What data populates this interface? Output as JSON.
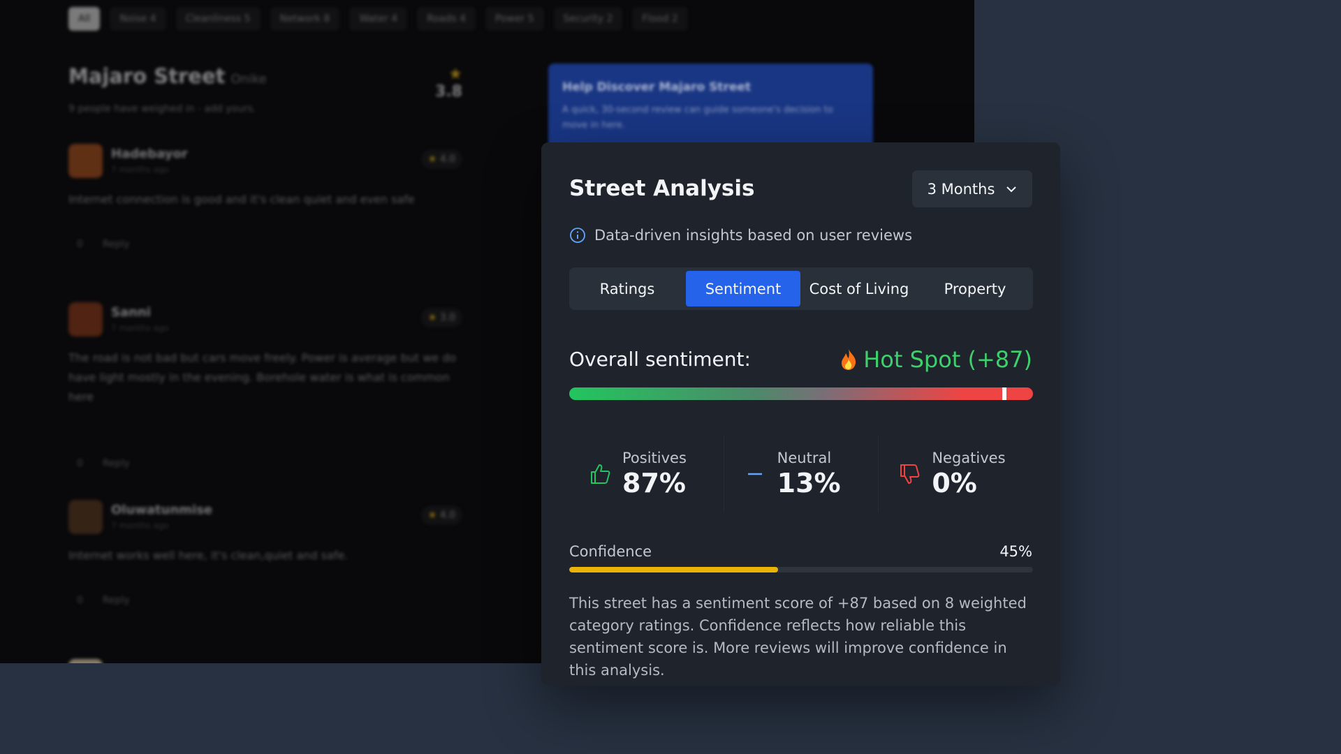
{
  "background": {
    "filters": [
      "All",
      "Noise 4",
      "Cleanliness 5",
      "Network 8",
      "Water 4",
      "Roads 4",
      "Power 5",
      "Security 2",
      "Flood 2"
    ],
    "street": {
      "name": "Majaro Street",
      "area": "Onike",
      "rating": "3.8",
      "summary": "9 people have weighed in - add yours."
    },
    "reviews": [
      {
        "author": "Hadebayor",
        "time": "7 months ago",
        "rating": "4.0",
        "text": "Internet connection is good and it's clean quiet and even safe",
        "votes": "0",
        "reply": "Reply"
      },
      {
        "author": "Sanni",
        "time": "7 months ago",
        "rating": "3.0",
        "text": "The road is not bad but cars move freely. Power is average but we do have light mostly in the evening. Borehole water is what is common here",
        "votes": "0",
        "reply": "Reply"
      },
      {
        "author": "Oluwatunmise",
        "time": "7 months ago",
        "rating": "4.0",
        "text": "Internet works well here, it's clean,quiet and safe.",
        "votes": "0",
        "reply": "Reply"
      }
    ],
    "promo": {
      "title": "Help Discover Majaro Street",
      "text": "A quick, 30-second review can guide someone's decision to move in here."
    }
  },
  "panel": {
    "title": "Street Analysis",
    "period": "3 Months",
    "info": "Data-driven insights based on user reviews",
    "tabs": [
      "Ratings",
      "Sentiment",
      "Cost of Living",
      "Property"
    ],
    "active_tab": 1,
    "sentiment": {
      "label": "Overall sentiment:",
      "verdict": "Hot Spot (+87)"
    },
    "stats": [
      {
        "label": "Positives",
        "value": "87%"
      },
      {
        "label": "Neutral",
        "value": "13%"
      },
      {
        "label": "Negatives",
        "value": "0%"
      }
    ],
    "confidence": {
      "label": "Confidence",
      "value": 45,
      "value_label": "45%"
    },
    "description": "This street has a sentiment score of +87 based on 8 weighted category ratings. Confidence reflects how reliable this sentiment score is. More reviews will improve confidence in this analysis."
  }
}
